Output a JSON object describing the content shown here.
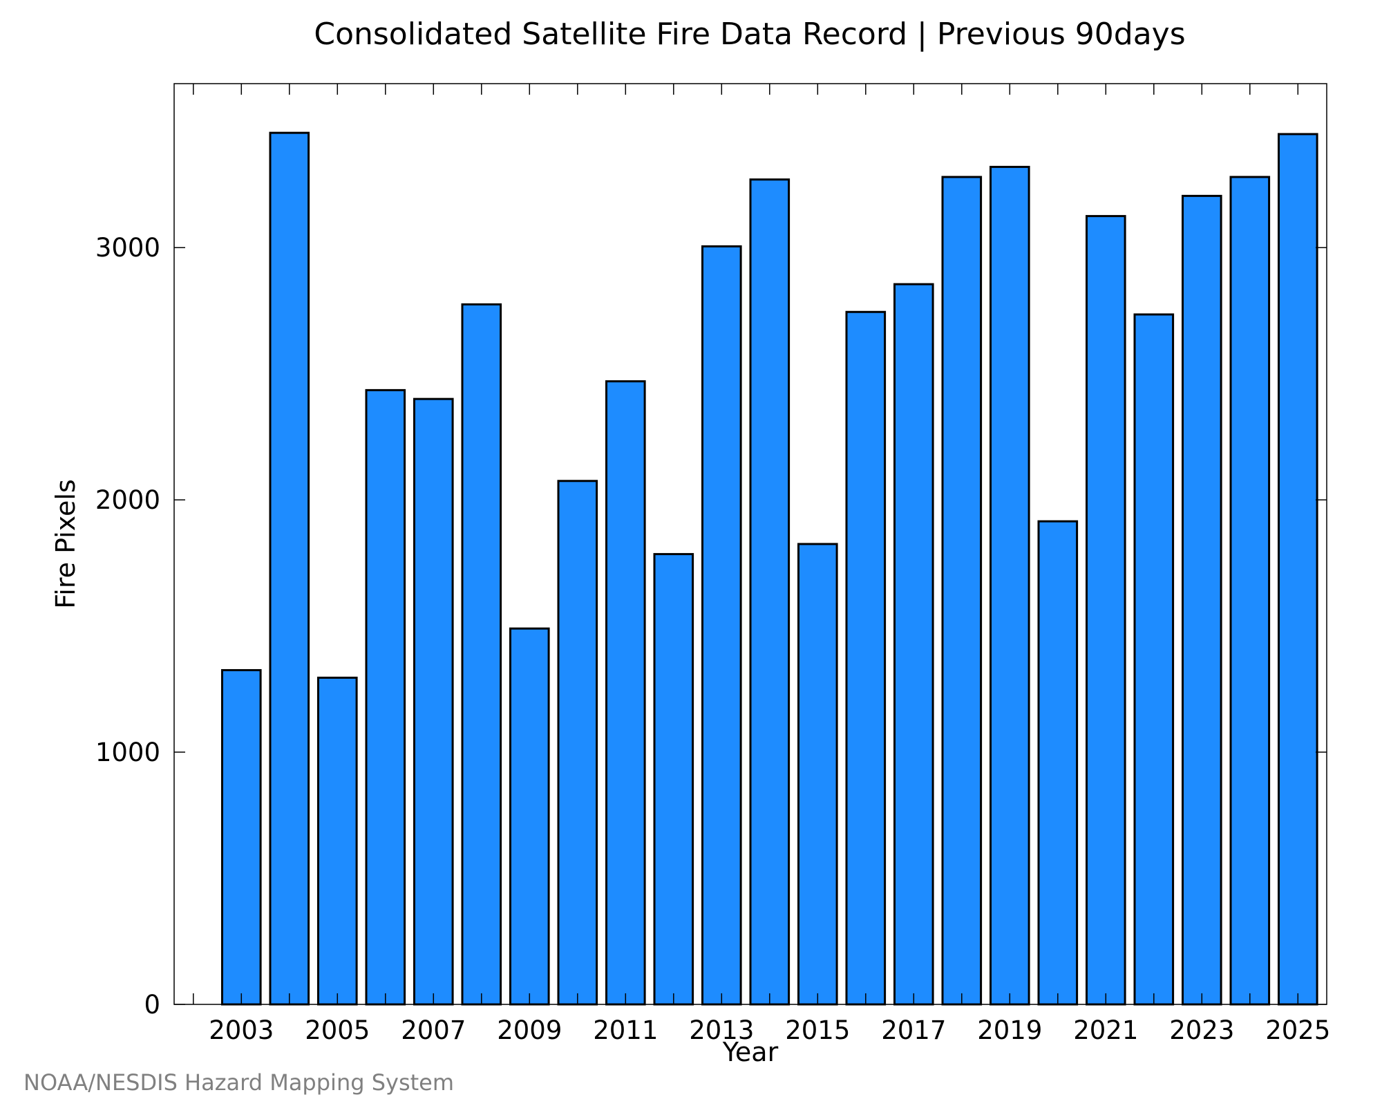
{
  "chart_data": {
    "type": "bar",
    "title": "Consolidated Satellite Fire Data Record | Previous 90days",
    "xlabel": "Year",
    "ylabel": "Fire Pixels",
    "credit": "NOAA/NESDIS Hazard Mapping System",
    "categories": [
      2003,
      2004,
      2005,
      2006,
      2007,
      2008,
      2009,
      2010,
      2011,
      2012,
      2013,
      2014,
      2015,
      2016,
      2017,
      2018,
      2019,
      2020,
      2021,
      2022,
      2023,
      2024,
      2025
    ],
    "values": [
      1325,
      3455,
      1295,
      2435,
      2400,
      2775,
      1490,
      2075,
      2470,
      1785,
      3005,
      3270,
      1825,
      2745,
      2855,
      3280,
      3320,
      1915,
      3125,
      2735,
      3205,
      3280,
      3450
    ],
    "xlim": [
      2001.6,
      2025.6
    ],
    "ylim": [
      0,
      3650
    ],
    "xticks": [
      "2003",
      "2005",
      "2007",
      "2009",
      "2011",
      "2013",
      "2015",
      "2017",
      "2019",
      "2021",
      "2023",
      "2025"
    ],
    "yticks": [
      "0",
      "1000",
      "2000",
      "3000"
    ],
    "bar_color": "#1e8cff",
    "edge_color": "#000000",
    "grid": false,
    "legend": "none"
  }
}
